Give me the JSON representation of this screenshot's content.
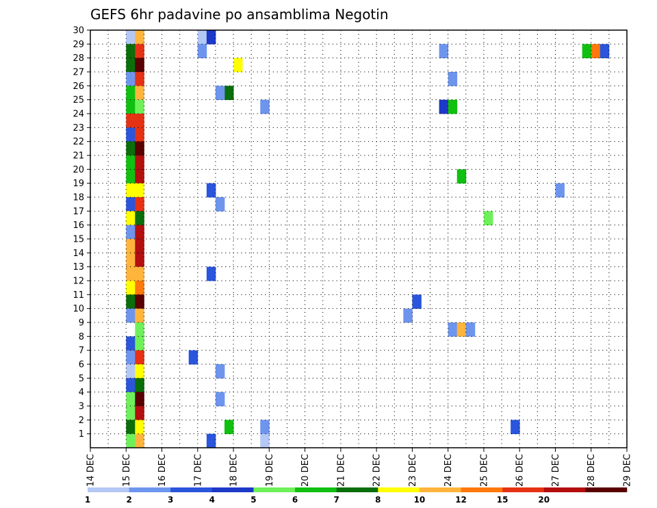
{
  "chart_data": {
    "type": "heatmap",
    "title": "GEFS 6hr padavine po ansamblima Negotin",
    "x_tick_labels": [
      "14 DEC",
      "15 DEC",
      "16 DEC",
      "17 DEC",
      "18 DEC",
      "19 DEC",
      "20 DEC",
      "21 DEC",
      "22 DEC",
      "23 DEC",
      "24 DEC",
      "25 DEC",
      "26 DEC",
      "27 DEC",
      "28 DEC",
      "29 DEC"
    ],
    "xlim": [
      "14 DEC 00Z",
      "29 DEC 00Z"
    ],
    "x_step_hours": 6,
    "ylim": [
      0,
      30
    ],
    "y_ticks": [
      1,
      2,
      3,
      4,
      5,
      6,
      7,
      8,
      9,
      10,
      11,
      12,
      13,
      14,
      15,
      16,
      17,
      18,
      19,
      20,
      21,
      22,
      23,
      24,
      25,
      26,
      27,
      28,
      29,
      30
    ],
    "grid": true,
    "legend": {
      "placement": "bottom",
      "colors": [
        "#b4c8f5",
        "#6e95ee",
        "#2a55dc",
        "#1c39c8",
        "#6ef05a",
        "#10c010",
        "#0a6e0a",
        "#ffff00",
        "#ffb43c",
        "#ff780a",
        "#e63214",
        "#b40f0f",
        "#5a0000"
      ],
      "labels": [
        "1",
        "2",
        "3",
        "4",
        "5",
        "6",
        "7",
        "8",
        "10",
        "12",
        "15",
        "20"
      ]
    },
    "cells": [
      {
        "member": 30,
        "day": "15 DEC",
        "step": 0,
        "class": 1
      },
      {
        "member": 30,
        "day": "15 DEC",
        "step": 1,
        "class": 9
      },
      {
        "member": 30,
        "day": "17 DEC",
        "step": 0,
        "class": 1
      },
      {
        "member": 30,
        "day": "17 DEC",
        "step": 1,
        "class": 4
      },
      {
        "member": 29,
        "day": "15 DEC",
        "step": 0,
        "class": 7
      },
      {
        "member": 29,
        "day": "15 DEC",
        "step": 1,
        "class": 11
      },
      {
        "member": 29,
        "day": "17 DEC",
        "step": 0,
        "class": 2
      },
      {
        "member": 29,
        "day": "23 DEC",
        "step": 3,
        "class": 2
      },
      {
        "member": 29,
        "day": "27 DEC",
        "step": 3,
        "class": 6
      },
      {
        "member": 29,
        "day": "28 DEC",
        "step": 0,
        "class": 10
      },
      {
        "member": 29,
        "day": "28 DEC",
        "step": 1,
        "class": 3
      },
      {
        "member": 28,
        "day": "15 DEC",
        "step": 0,
        "class": 7
      },
      {
        "member": 28,
        "day": "15 DEC",
        "step": 1,
        "class": 13
      },
      {
        "member": 28,
        "day": "18 DEC",
        "step": 0,
        "class": 8
      },
      {
        "member": 27,
        "day": "15 DEC",
        "step": 0,
        "class": 2
      },
      {
        "member": 27,
        "day": "15 DEC",
        "step": 1,
        "class": 11
      },
      {
        "member": 27,
        "day": "24 DEC",
        "step": 0,
        "class": 2
      },
      {
        "member": 26,
        "day": "15 DEC",
        "step": 0,
        "class": 6
      },
      {
        "member": 26,
        "day": "15 DEC",
        "step": 1,
        "class": 9
      },
      {
        "member": 26,
        "day": "17 DEC",
        "step": 3,
        "class": 7
      },
      {
        "member": 26,
        "day": "17 DEC",
        "step": 2,
        "class": 2
      },
      {
        "member": 25,
        "day": "15 DEC",
        "step": 0,
        "class": 6
      },
      {
        "member": 25,
        "day": "15 DEC",
        "step": 1,
        "class": 5
      },
      {
        "member": 25,
        "day": "18 DEC",
        "step": 3,
        "class": 2
      },
      {
        "member": 25,
        "day": "23 DEC",
        "step": 3,
        "class": 4
      },
      {
        "member": 25,
        "day": "24 DEC",
        "step": 0,
        "class": 6
      },
      {
        "member": 24,
        "day": "15 DEC",
        "step": 0,
        "class": 11
      },
      {
        "member": 24,
        "day": "15 DEC",
        "step": 1,
        "class": 11
      },
      {
        "member": 23,
        "day": "15 DEC",
        "step": 0,
        "class": 3
      },
      {
        "member": 23,
        "day": "15 DEC",
        "step": 1,
        "class": 11
      },
      {
        "member": 22,
        "day": "15 DEC",
        "step": 0,
        "class": 7
      },
      {
        "member": 22,
        "day": "15 DEC",
        "step": 1,
        "class": 13
      },
      {
        "member": 21,
        "day": "15 DEC",
        "step": 0,
        "class": 6
      },
      {
        "member": 21,
        "day": "15 DEC",
        "step": 1,
        "class": 12
      },
      {
        "member": 20,
        "day": "15 DEC",
        "step": 0,
        "class": 6
      },
      {
        "member": 20,
        "day": "15 DEC",
        "step": 1,
        "class": 12
      },
      {
        "member": 20,
        "day": "24 DEC",
        "step": 1,
        "class": 6
      },
      {
        "member": 19,
        "day": "15 DEC",
        "step": 0,
        "class": 8
      },
      {
        "member": 19,
        "day": "15 DEC",
        "step": 1,
        "class": 8
      },
      {
        "member": 19,
        "day": "17 DEC",
        "step": 1,
        "class": 3
      },
      {
        "member": 19,
        "day": "27 DEC",
        "step": 0,
        "class": 2
      },
      {
        "member": 18,
        "day": "15 DEC",
        "step": 0,
        "class": 3
      },
      {
        "member": 18,
        "day": "15 DEC",
        "step": 1,
        "class": 11
      },
      {
        "member": 18,
        "day": "17 DEC",
        "step": 2,
        "class": 2
      },
      {
        "member": 17,
        "day": "15 DEC",
        "step": 0,
        "class": 8
      },
      {
        "member": 17,
        "day": "15 DEC",
        "step": 1,
        "class": 7
      },
      {
        "member": 17,
        "day": "25 DEC",
        "step": 0,
        "class": 5
      },
      {
        "member": 16,
        "day": "15 DEC",
        "step": 0,
        "class": 2
      },
      {
        "member": 16,
        "day": "15 DEC",
        "step": 1,
        "class": 12
      },
      {
        "member": 15,
        "day": "15 DEC",
        "step": 0,
        "class": 9
      },
      {
        "member": 15,
        "day": "15 DEC",
        "step": 1,
        "class": 12
      },
      {
        "member": 14,
        "day": "15 DEC",
        "step": 0,
        "class": 9
      },
      {
        "member": 14,
        "day": "15 DEC",
        "step": 1,
        "class": 12
      },
      {
        "member": 13,
        "day": "15 DEC",
        "step": 0,
        "class": 9
      },
      {
        "member": 13,
        "day": "15 DEC",
        "step": 1,
        "class": 9
      },
      {
        "member": 13,
        "day": "17 DEC",
        "step": 1,
        "class": 3
      },
      {
        "member": 12,
        "day": "15 DEC",
        "step": 0,
        "class": 8
      },
      {
        "member": 12,
        "day": "15 DEC",
        "step": 1,
        "class": 10
      },
      {
        "member": 11,
        "day": "15 DEC",
        "step": 0,
        "class": 7
      },
      {
        "member": 11,
        "day": "15 DEC",
        "step": 1,
        "class": 13
      },
      {
        "member": 11,
        "day": "23 DEC",
        "step": 0,
        "class": 3
      },
      {
        "member": 10,
        "day": "15 DEC",
        "step": 0,
        "class": 2
      },
      {
        "member": 10,
        "day": "15 DEC",
        "step": 1,
        "class": 9
      },
      {
        "member": 10,
        "day": "22 DEC",
        "step": 3,
        "class": 2
      },
      {
        "member": 9,
        "day": "15 DEC",
        "step": 1,
        "class": 5
      },
      {
        "member": 9,
        "day": "24 DEC",
        "step": 0,
        "class": 2
      },
      {
        "member": 9,
        "day": "24 DEC",
        "step": 1,
        "class": 9
      },
      {
        "member": 9,
        "day": "24 DEC",
        "step": 2,
        "class": 2
      },
      {
        "member": 8,
        "day": "15 DEC",
        "step": 0,
        "class": 3
      },
      {
        "member": 8,
        "day": "15 DEC",
        "step": 1,
        "class": 5
      },
      {
        "member": 7,
        "day": "15 DEC",
        "step": 0,
        "class": 2
      },
      {
        "member": 7,
        "day": "15 DEC",
        "step": 1,
        "class": 11
      },
      {
        "member": 7,
        "day": "16 DEC",
        "step": 3,
        "class": 3
      },
      {
        "member": 6,
        "day": "15 DEC",
        "step": 0,
        "class": 1
      },
      {
        "member": 6,
        "day": "15 DEC",
        "step": 1,
        "class": 8
      },
      {
        "member": 6,
        "day": "17 DEC",
        "step": 2,
        "class": 2
      },
      {
        "member": 5,
        "day": "15 DEC",
        "step": 0,
        "class": 3
      },
      {
        "member": 5,
        "day": "15 DEC",
        "step": 1,
        "class": 7
      },
      {
        "member": 4,
        "day": "15 DEC",
        "step": 0,
        "class": 5
      },
      {
        "member": 4,
        "day": "15 DEC",
        "step": 1,
        "class": 13
      },
      {
        "member": 4,
        "day": "17 DEC",
        "step": 2,
        "class": 2
      },
      {
        "member": 3,
        "day": "15 DEC",
        "step": 0,
        "class": 5
      },
      {
        "member": 3,
        "day": "15 DEC",
        "step": 1,
        "class": 12
      },
      {
        "member": 2,
        "day": "15 DEC",
        "step": 0,
        "class": 7
      },
      {
        "member": 2,
        "day": "15 DEC",
        "step": 1,
        "class": 8
      },
      {
        "member": 2,
        "day": "17 DEC",
        "step": 3,
        "class": 6
      },
      {
        "member": 2,
        "day": "18 DEC",
        "step": 3,
        "class": 2
      },
      {
        "member": 2,
        "day": "25 DEC",
        "step": 3,
        "class": 3
      },
      {
        "member": 1,
        "day": "15 DEC",
        "step": 0,
        "class": 5
      },
      {
        "member": 1,
        "day": "15 DEC",
        "step": 1,
        "class": 9
      },
      {
        "member": 1,
        "day": "17 DEC",
        "step": 1,
        "class": 3
      },
      {
        "member": 1,
        "day": "18 DEC",
        "step": 3,
        "class": 1
      }
    ]
  }
}
